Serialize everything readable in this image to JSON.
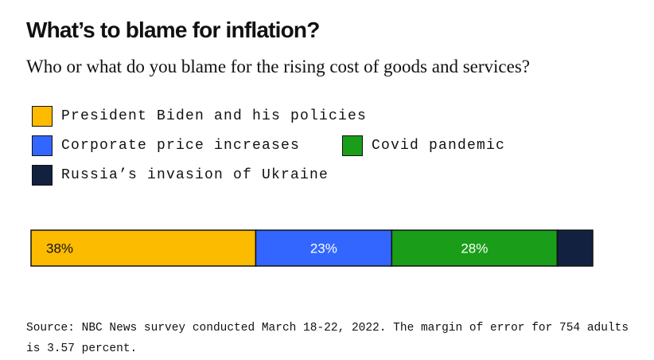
{
  "title": "What’s to blame for inflation?",
  "subtitle": "Who or what do you blame for the rising cost of goods and services?",
  "source": "Source: NBC News survey conducted March 18-22, 2022. The margin of error for 754 adults is 3.57 percent.",
  "legend": [
    {
      "label": "President Biden and his policies",
      "color": "#fdbb00"
    },
    {
      "label": "Corporate price increases",
      "color": "#3366ff"
    },
    {
      "label": "Covid pandemic",
      "color": "#1a9e1a"
    },
    {
      "label": "Russia’s invasion of Ukraine",
      "color": "#12213f"
    }
  ],
  "chart_data": {
    "type": "bar",
    "orientation": "horizontal-stacked",
    "title": "What’s to blame for inflation?",
    "subtitle": "Who or what do you blame for the rising cost of goods and services?",
    "series": [
      {
        "name": "President Biden and his policies",
        "value": 38,
        "label": "38%",
        "color": "#fdbb00",
        "label_color": "#111111"
      },
      {
        "name": "Corporate price increases",
        "value": 23,
        "label": "23%",
        "color": "#3366ff",
        "label_color": "#ffffff"
      },
      {
        "name": "Covid pandemic",
        "value": 28,
        "label": "28%",
        "color": "#1a9e1a",
        "label_color": "#ffffff"
      },
      {
        "name": "Russia’s invasion of Ukraine",
        "value": 6,
        "label": "",
        "color": "#12213f",
        "label_color": "#ffffff"
      }
    ],
    "legend_position": "top-left",
    "grid": false
  }
}
